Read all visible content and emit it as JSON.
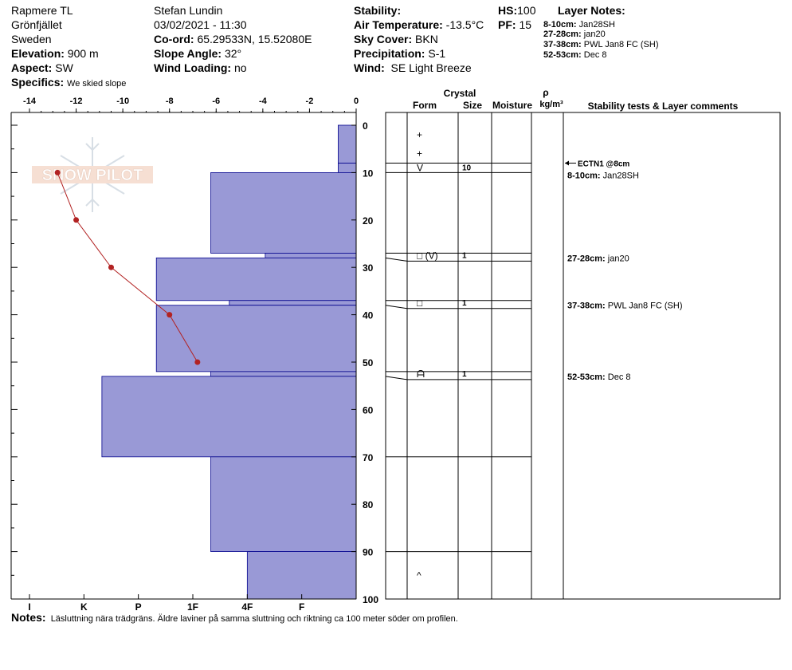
{
  "header": {
    "location": "Rapmere TL",
    "area": "Grönfjället",
    "country": "Sweden",
    "elevation_label": "Elevation:",
    "elevation": "900 m",
    "aspect_label": "Aspect:",
    "aspect": "SW",
    "specifics_label": "Specifics:",
    "specifics": "We skied slope",
    "observer": "Stefan Lundin",
    "datetime": "03/02/2021 - 11:30",
    "coord_label": "Co-ord:",
    "coord": "65.29533N, 15.52080E",
    "slope_label": "Slope Angle:",
    "slope": "32°",
    "wind_loading_label": "Wind Loading:",
    "wind_loading": "no",
    "stability_label": "Stability:",
    "air_temp_label": "Air Temperature:",
    "air_temp": "-13.5°C",
    "sky_label": "Sky Cover:",
    "sky": "BKN",
    "precip_label": "Precipitation:",
    "precip": "S-1",
    "wind_label": "Wind:",
    "wind": "SE Light Breeze",
    "hs_label": "HS:",
    "hs": "100",
    "pf_label": "PF:",
    "pf": "15"
  },
  "layer_notes": {
    "title": "Layer Notes:",
    "items": [
      {
        "range": "8-10cm:",
        "text": "Jan28SH"
      },
      {
        "range": "27-28cm:",
        "text": "jan20"
      },
      {
        "range": "37-38cm:",
        "text": "PWL Jan8 FC (SH)"
      },
      {
        "range": "52-53cm:",
        "text": "Dec 8"
      }
    ]
  },
  "watermark": "SNOW PILOT",
  "notes": {
    "label": "Notes:",
    "text": "Läsluttning nära trädgräns. Äldre laviner på samma sluttning och riktning ca 100 meter söder om profilen."
  },
  "table_headers": {
    "crystal": "Crystal",
    "form": "Form",
    "size": "Size",
    "moisture": "Moisture",
    "rho": "ρ",
    "density": "kg/m³",
    "comments": "Stability tests & Layer comments"
  },
  "chart_data": {
    "type": "snow_profile",
    "temp_axis": {
      "min": -14,
      "max": 0,
      "ticks": [
        -14,
        -12,
        -10,
        -8,
        -6,
        -4,
        -2,
        0
      ]
    },
    "depth_axis": {
      "min": 0,
      "max": 100,
      "ticks": [
        0,
        10,
        20,
        30,
        40,
        50,
        60,
        70,
        80,
        90,
        100
      ]
    },
    "hardness_ticks": [
      "I",
      "K",
      "P",
      "1F",
      "4F",
      "F"
    ],
    "temperature_profile": [
      {
        "depth": 10,
        "temp": -12.8
      },
      {
        "depth": 20,
        "temp": -12.0
      },
      {
        "depth": 30,
        "temp": -10.5
      },
      {
        "depth": 40,
        "temp": -8.0
      },
      {
        "depth": 50,
        "temp": -6.8
      }
    ],
    "hardness_layers": [
      {
        "top": 0,
        "bottom": 8,
        "hardness": 0.33
      },
      {
        "top": 8,
        "bottom": 10,
        "hardness": 0.33
      },
      {
        "top": 10,
        "bottom": 27,
        "hardness": 2.67
      },
      {
        "top": 27,
        "bottom": 28,
        "hardness": 1.67
      },
      {
        "top": 28,
        "bottom": 37,
        "hardness": 3.67
      },
      {
        "top": 37,
        "bottom": 38,
        "hardness": 2.33
      },
      {
        "top": 38,
        "bottom": 52,
        "hardness": 3.67
      },
      {
        "top": 52,
        "bottom": 53,
        "hardness": 2.67
      },
      {
        "top": 53,
        "bottom": 70,
        "hardness": 4.67
      },
      {
        "top": 70,
        "bottom": 90,
        "hardness": 2.67
      },
      {
        "top": 90,
        "bottom": 100,
        "hardness": 2.0
      }
    ],
    "layer_boundaries": [
      8,
      10,
      27,
      28,
      37,
      38,
      52,
      53,
      70,
      90
    ],
    "crystals": [
      {
        "depth": 2,
        "form": "+",
        "size": ""
      },
      {
        "depth": 6,
        "form": "+",
        "size": ""
      },
      {
        "depth": 9,
        "form": "V",
        "size": "10"
      },
      {
        "depth": 27.5,
        "form": "□ (V)",
        "size": "1"
      },
      {
        "depth": 37.5,
        "form": "□",
        "size": "1"
      },
      {
        "depth": 52.5,
        "form": "ᗩ",
        "size": "1"
      },
      {
        "depth": 95,
        "form": "^",
        "size": ""
      }
    ],
    "stability_tests": [
      {
        "depth": 8,
        "text": "ECTN1 @8cm"
      }
    ],
    "layer_comments": [
      {
        "depth": 10.5,
        "range": "8-10cm:",
        "text": "Jan28SH"
      },
      {
        "depth": 28,
        "range": "27-28cm:",
        "text": "jan20"
      },
      {
        "depth": 38,
        "range": "37-38cm:",
        "text": "PWL Jan8 FC (SH)"
      },
      {
        "depth": 53,
        "range": "52-53cm:",
        "text": "Dec 8"
      }
    ],
    "colors": {
      "hardness_fill": "#9999d6",
      "hardness_stroke": "#00008b",
      "temp_line": "#b22222"
    }
  }
}
